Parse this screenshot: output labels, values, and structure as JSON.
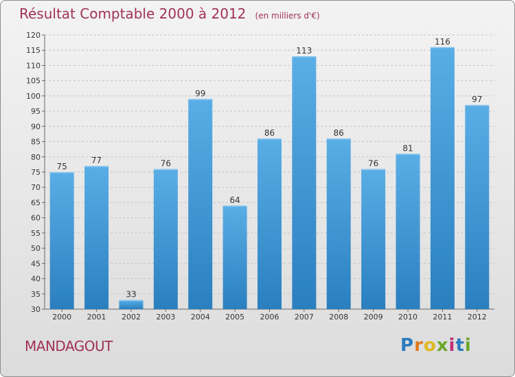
{
  "header": {
    "title": "Résultat Comptable 2000 à 2012",
    "unit": "(en milliers d'€)"
  },
  "footer": {
    "town": "MANDAGOUT",
    "logo_letters": [
      "P",
      "r",
      "o",
      "x",
      "i",
      "t",
      "i"
    ],
    "logo_colors": [
      "#2b7bbf",
      "#e07a1f",
      "#e0b81f",
      "#6aa82a",
      "#c0307a",
      "#2b7bbf",
      "#6aa82a"
    ]
  },
  "chart_data": {
    "type": "bar",
    "categories": [
      "2000",
      "2001",
      "2002",
      "2003",
      "2004",
      "2005",
      "2006",
      "2007",
      "2008",
      "2009",
      "2010",
      "2011",
      "2012"
    ],
    "values": [
      75,
      77,
      33,
      76,
      99,
      64,
      86,
      113,
      86,
      76,
      81,
      116,
      97
    ],
    "ylim": [
      30,
      120
    ],
    "yticks": [
      30,
      35,
      40,
      45,
      50,
      55,
      60,
      65,
      70,
      75,
      80,
      85,
      90,
      95,
      100,
      105,
      110,
      115,
      120
    ],
    "grid": true,
    "bar_color_top": "#5aaee6",
    "bar_color_bottom": "#2a7fbf"
  }
}
